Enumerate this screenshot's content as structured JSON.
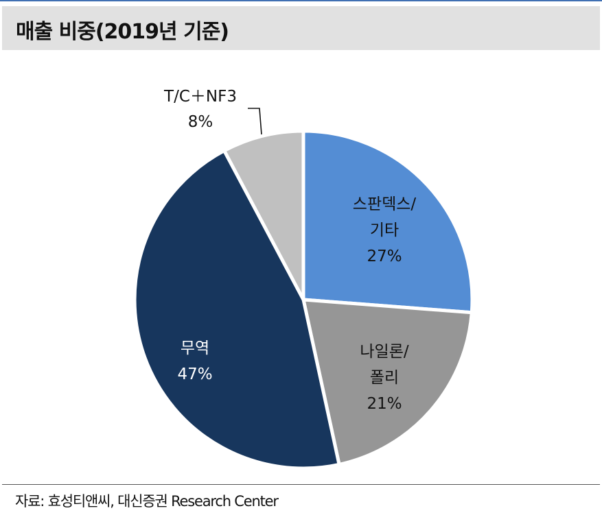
{
  "header": {
    "title": "매출 비중(2019년 기준)"
  },
  "chart_data": {
    "type": "pie",
    "title": "매출 비중(2019년 기준)",
    "unit": "%",
    "slices": [
      {
        "label_lines": [
          "스판덱스/",
          "기타"
        ],
        "value": 27,
        "value_label": "27%",
        "color": "#548dd4",
        "label_color": "#111111"
      },
      {
        "label_lines": [
          "나일론/",
          "폴리"
        ],
        "value": 21,
        "value_label": "21%",
        "color": "#969696",
        "label_color": "#111111"
      },
      {
        "label_lines": [
          "무역"
        ],
        "value": 47,
        "value_label": "47%",
        "color": "#17365d",
        "label_color": "#ffffff"
      },
      {
        "label_lines": [
          "T/C＋NF3"
        ],
        "value": 8,
        "value_label": "8%",
        "color": "#c0c0c0",
        "label_color": "#111111"
      }
    ]
  },
  "footer": {
    "source": "자료: 효성티앤씨, 대신증권 Research Center"
  }
}
